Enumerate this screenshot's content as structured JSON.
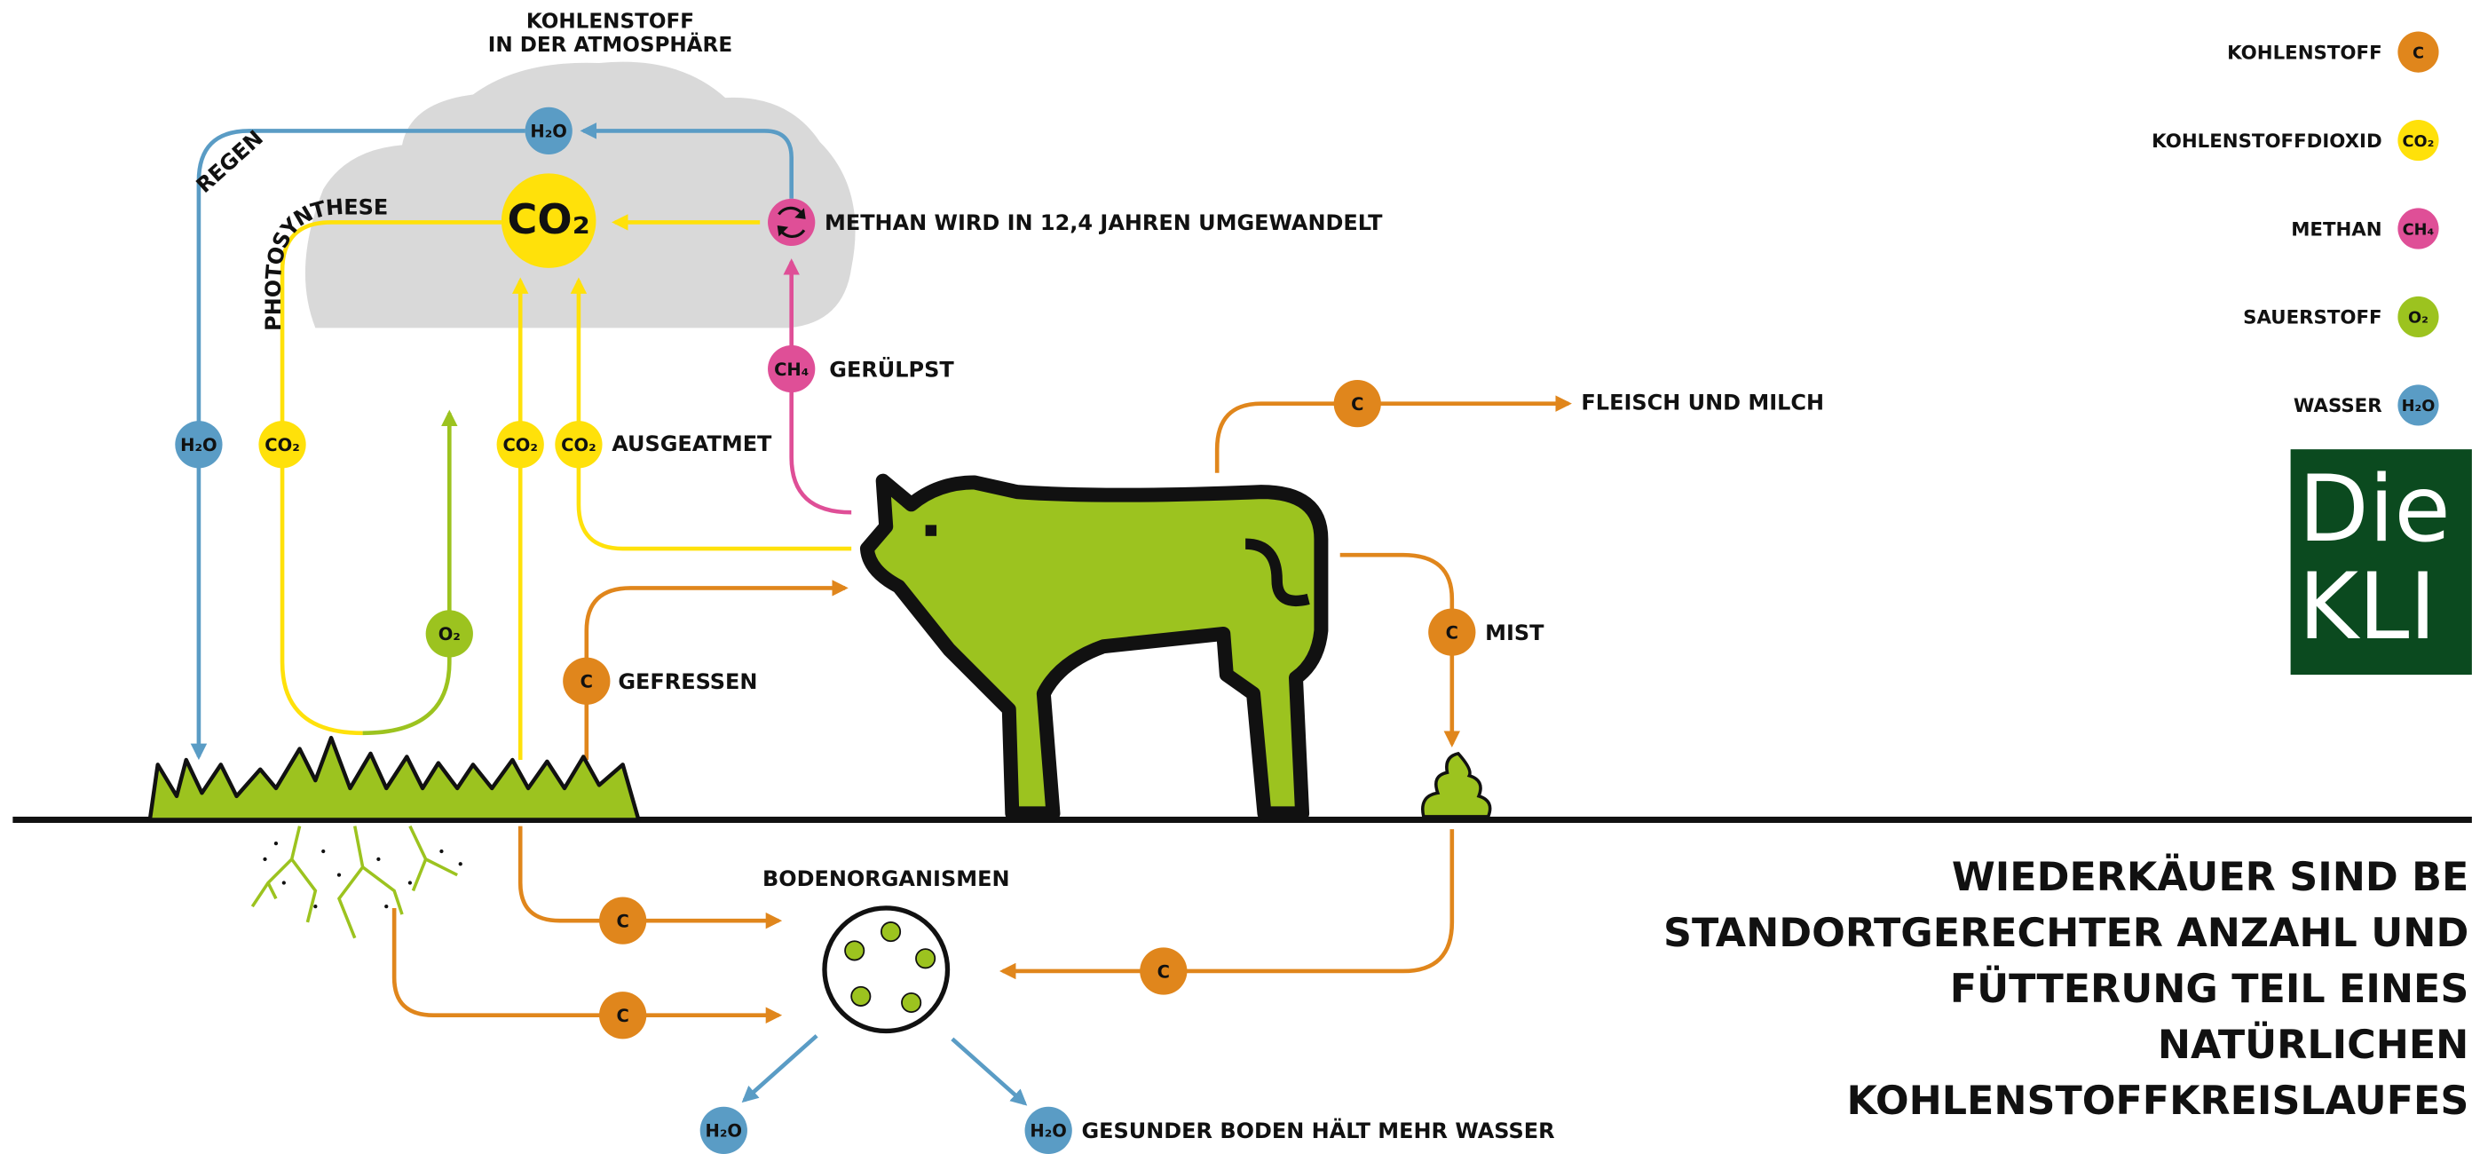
{
  "cloud": {
    "title_lines": [
      "KOHLENSTOFF",
      "IN DER ATMOSPHÄRE"
    ]
  },
  "labels": {
    "rain": "REGEN",
    "photosynthesis": "PHOTOSYNTHESE",
    "methane": "METHAN WIRD IN 12,4 JAHREN UMGEWANDELT",
    "burped": "GERÜLPST",
    "exhaled": "AUSGEATMET",
    "meat": "FLEISCH UND MILCH",
    "manure": "MIST",
    "eaten": "GEFRESSEN",
    "soil": "BODENORGANISMEN",
    "water": "GESUNDER BODEN HÄLT MEHR WASSER"
  },
  "badges": [
    "H₂O",
    "CO₂",
    "CH₄",
    "H₂O",
    "CO₂",
    "CO₂",
    "CO₂",
    "O₂",
    "C",
    "C",
    "C",
    "C",
    "C",
    "C",
    "H₂O",
    "H₂O"
  ],
  "legend": [
    {
      "name": "KOHLENSTOFF",
      "symbol": "C",
      "color": "#e0861c"
    },
    {
      "name": "KOHLENSTOFFDIOXID",
      "symbol": "CO₂",
      "color": "#ffe10a"
    },
    {
      "name": "METHAN",
      "symbol": "CH₄",
      "color": "#df4f97"
    },
    {
      "name": "SAUERSTOFF",
      "symbol": "O₂",
      "color": "#9cc31f"
    },
    {
      "name": "WASSER",
      "symbol": "H₂O",
      "color": "#5a9cc5"
    }
  ],
  "banner": {
    "lines": [
      "Die",
      "KLI"
    ]
  },
  "statement": {
    "lines": [
      "WIEDERKÄUER SIND BE",
      "STANDORTGERECHTER ANZAHL UND",
      "FÜTTERUNG TEIL EINES",
      "NATÜRLICHEN",
      "KOHLENSTOFFKREISLAUFES"
    ]
  }
}
